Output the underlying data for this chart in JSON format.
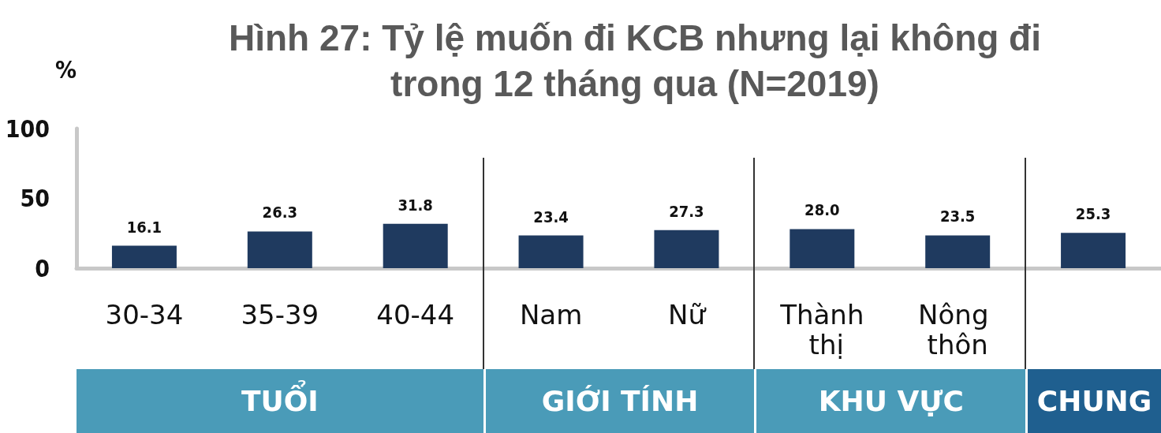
{
  "chart_data": {
    "type": "bar",
    "title": "Hình 27: Tỷ lệ muốn đi KCB nhưng lại không đi\ntrong 12 tháng qua (N=2019)",
    "ylabel": "%",
    "categories": [
      "30-34",
      "35-39",
      "40-44",
      "Nam",
      "Nữ",
      "Thành thị",
      "Nông thôn",
      null
    ],
    "values": [
      16.1,
      26.3,
      31.8,
      23.4,
      27.3,
      28.0,
      23.5,
      25.3
    ],
    "value_labels": [
      "16.1",
      "26.3",
      "31.8",
      "23.4",
      "27.3",
      "28.0",
      "23.5",
      "25.3"
    ],
    "color": "#1f3a5f",
    "ylim": [
      0,
      100
    ],
    "yticks": [
      0,
      50,
      100
    ],
    "grid": false,
    "annotations": [
      "TUỔI",
      "GIỚI TÍNH",
      "KHU VỰC",
      "CHUNG"
    ]
  }
}
